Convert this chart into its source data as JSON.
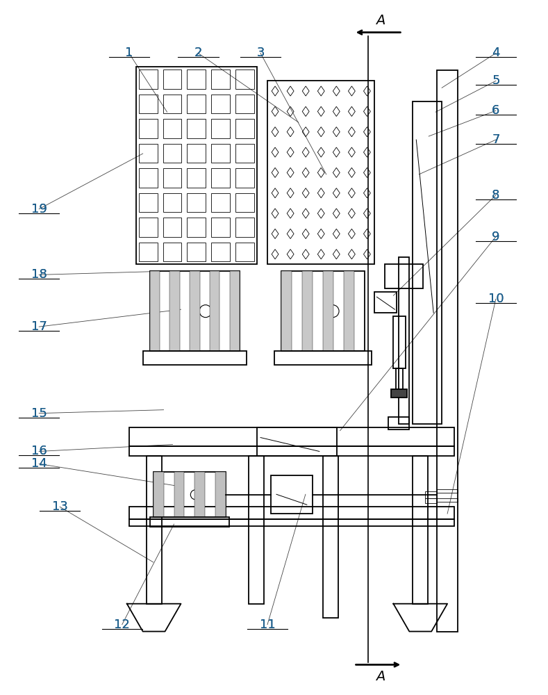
{
  "bg_color": "#ffffff",
  "line_color": "#000000",
  "label_color": "#1a5c8a",
  "figsize": [
    7.89,
    10.0
  ],
  "dpi": 100,
  "lw_main": 1.3,
  "lw_thin": 0.7,
  "lw_label": 0.6
}
